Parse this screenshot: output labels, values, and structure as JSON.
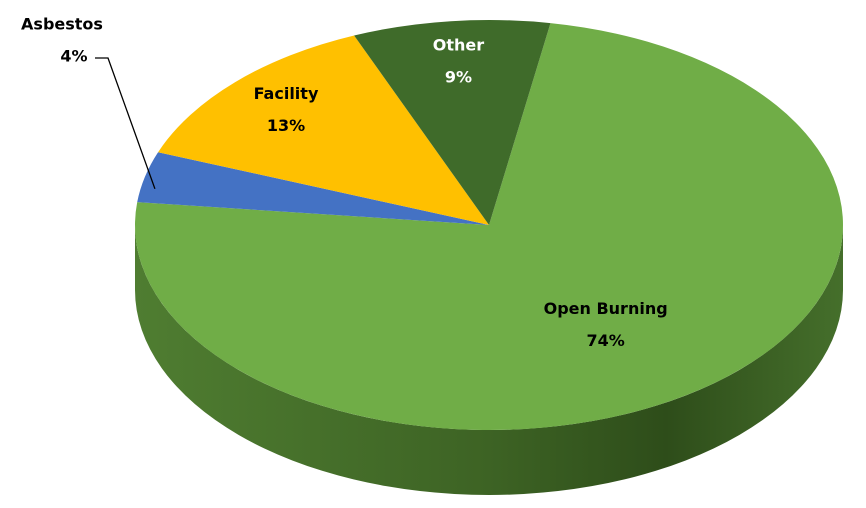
{
  "chart_data": {
    "type": "pie",
    "categories": [
      "Open Burning",
      "Asbestos",
      "Facility",
      "Other"
    ],
    "values": [
      74,
      4,
      13,
      9
    ],
    "value_labels": [
      "74%",
      "4%",
      "13%",
      "9%"
    ],
    "colors": [
      "#70ad47",
      "#4472c4",
      "#ffc000",
      "#3f6b2a"
    ]
  }
}
